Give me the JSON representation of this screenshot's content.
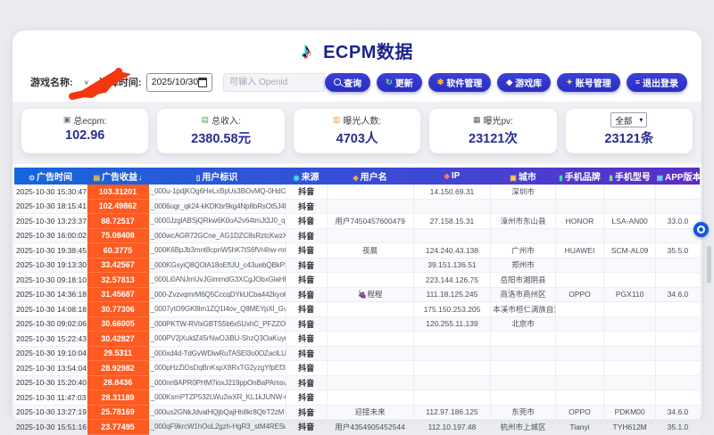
{
  "title": {
    "text": "ECPM数据"
  },
  "glyphs": {
    "note": "♪",
    "chevron_down": "∨",
    "select_arrow": "▾"
  },
  "colors": {
    "header_gradient_left": "#1766dc",
    "header_gradient_right": "#5d2cc8",
    "revenue_cell_bg": "#fd5b21",
    "accent_navy": "#272e8f",
    "button_indigo": "#3a41d8",
    "scribble_red": "#f5360f",
    "tiktok_cyan": "#25f4ee",
    "tiktok_red": "#fe2c55"
  },
  "filters": {
    "game_label": "游戏名称:",
    "time_label": "选择时间:",
    "date_value": "2025/10/30",
    "openid_placeholder": "可输入 Openid"
  },
  "toolbar": {
    "buttons": [
      {
        "id": "search",
        "label": "查询",
        "glyph": "",
        "glyph_color": "#ffffff"
      },
      {
        "id": "refresh",
        "label": "更新",
        "glyph": "↻",
        "glyph_color": "#7fe07f"
      },
      {
        "id": "software",
        "label": "软件管理",
        "glyph": "✱",
        "glyph_color": "#ffb03a"
      },
      {
        "id": "games",
        "label": "游戏库",
        "glyph": "◆",
        "glyph_color": "#ffffff"
      },
      {
        "id": "account",
        "label": "账号管理",
        "glyph": "✦",
        "glyph_color": "#ffd75e"
      },
      {
        "id": "logout",
        "label": "退出登录",
        "glyph": "≡",
        "glyph_color": "#ffffff"
      }
    ]
  },
  "stats": [
    {
      "id": "total-ecpm",
      "icon": "▣",
      "icon_color": "#6a7080",
      "label": "总ecpm:",
      "value": "102.96"
    },
    {
      "id": "total-revenue",
      "icon": "▤",
      "icon_color": "#3fae5a",
      "label": "总收入:",
      "value": "2380.58元"
    },
    {
      "id": "exposure-users",
      "icon": "▥",
      "icon_color": "#f2a33c",
      "label": "曝光人数:",
      "value": "4703人"
    },
    {
      "id": "exposure-pv",
      "icon": "▦",
      "icon_color": "#5a6070",
      "label": "曝光pv:",
      "value": "23121次"
    },
    {
      "id": "record-count",
      "select_value": "全部",
      "value": "23121条"
    }
  ],
  "table": {
    "columns": [
      {
        "key": "ad-time",
        "label": "广告时间",
        "icon": "⊙",
        "icon_color": "#ffffff",
        "sort": "",
        "width_pct": 10.7
      },
      {
        "key": "ad-revenue",
        "label": "广告收益",
        "icon": "▤",
        "icon_color": "#ffc53d",
        "sort": "↓",
        "width_pct": 8.9
      },
      {
        "key": "user-id",
        "label": "用户标识",
        "icon": "▯",
        "icon_color": "#ffffff",
        "sort": "",
        "width_pct": 20.0
      },
      {
        "key": "source",
        "label": "来源",
        "icon": "◉",
        "icon_color": "#45d6f0",
        "sort": "",
        "width_pct": 6.0
      },
      {
        "key": "username",
        "label": "用户名",
        "icon": "◈",
        "icon_color": "#ffb03a",
        "sort": "",
        "width_pct": 12.6
      },
      {
        "key": "ip",
        "label": "IP",
        "icon": "◆",
        "icon_color": "#ff7a6b",
        "sort": "",
        "width_pct": 11.3
      },
      {
        "key": "city",
        "label": "城市",
        "icon": "▣",
        "icon_color": "#ffd24a",
        "sort": "",
        "width_pct": 9.4
      },
      {
        "key": "phone-brand",
        "label": "手机品牌",
        "icon": "▮",
        "icon_color": "#3fd9a4",
        "sort": "",
        "width_pct": 7.1
      },
      {
        "key": "phone-model",
        "label": "手机型号",
        "icon": "▮",
        "icon_color": "#7ee07e",
        "sort": "",
        "width_pct": 7.5
      },
      {
        "key": "app-version",
        "label": "APP版本",
        "icon": "▣",
        "icon_color": "#6fd3ff",
        "sort": "",
        "width_pct": 6.5
      }
    ],
    "rows": [
      [
        "2025-10-30 15:30:47",
        "103.31201",
        "_000u-1pdjKOg6HeLxBpUs3BOvMQ-0HdCqsF",
        "抖音",
        "",
        "14.150.69.31",
        "深圳市",
        "",
        "",
        ""
      ],
      [
        "2025-10-30 18:15:41",
        "102.49862",
        "_0006ugr_qk24-kKDKbr9kg4Np8bRsOt5J4F",
        "抖音",
        "",
        "",
        "",
        "",
        "",
        ""
      ],
      [
        "2025-10-30 13:23:37",
        "88.72517",
        "_0000JzglABSjQRkw6K0oA2v64tmJt3J0_q",
        "抖音",
        "用户7450457600479",
        "27.158.15.31",
        "漳州市东山县",
        "HONOR",
        "LSA-AN00",
        "33.0.0"
      ],
      [
        "2025-10-30 16:00:02",
        "75.08408",
        "_000wcAGR72GCne_AG1DZC8sRztcKwzXu0ul",
        "抖音",
        "",
        "",
        "",
        "",
        "",
        ""
      ],
      [
        "2025-10-30 19:38:45",
        "60.3775",
        "_000K6BpJb3mnt8cpnW5hK7tS6fVr4hw-mQ",
        "抖音",
        "夜晨",
        "124.240.43.138",
        "广州市",
        "HUAWEI",
        "SCM-AL09",
        "35.5.0"
      ],
      [
        "2025-10-30 19:13:30",
        "33.42567",
        "_000KGxyiQ8QOlA18oEfUU_c43uebQBkPSC",
        "抖音",
        "",
        "39.151.136.51",
        "郑州市",
        "",
        "",
        ""
      ],
      [
        "2025-10-30 09:18:10",
        "32.57813",
        "_000Li0ANJmUvJGimmdG3XCgJObxGlaHfUgM",
        "抖音",
        "",
        "223.144.126.75",
        "岳阳市湘阴县",
        "",
        "",
        ""
      ],
      [
        "2025-10-30 14:36:18",
        "31.45687",
        "_000-ZvzvqmrM6Q5CccqDYkUCba442kyoKg",
        "抖音",
        "🍇程程",
        "111.18.125.245",
        "商洛市商州区",
        "OPPO",
        "PGX110",
        "34.6.0"
      ],
      [
        "2025-10-30 14:08:18",
        "30.77306",
        "_0007ytO9GK8lm1ZQ1l4ov_Q8MEYpXl_GvGE",
        "抖音",
        "",
        "175.150.253.205",
        "本溪市桓仁满族自治县",
        "",
        "",
        ""
      ],
      [
        "2025-10-30 09:02:06",
        "30.66005",
        "_000PKTW-RVlxGBTS5b6x5UxhC_PFZZOcX25",
        "抖音",
        "",
        "120.255.11.139",
        "北京市",
        "",
        "",
        ""
      ],
      [
        "2025-10-30 15:22:43",
        "30.42827",
        "_000PV2jXuldZ45rNwOJiBU-ShzQ3OaKuyn1",
        "抖音",
        "",
        "",
        "",
        "",
        "",
        ""
      ],
      [
        "2025-10-30 19:10:04",
        "29.5311",
        "_000xd4d-TdGvWDiwRuTASEl3o0OZaclLU5",
        "抖音",
        "",
        "",
        "",
        "",
        "",
        ""
      ],
      [
        "2025-10-30 13:54:04",
        "28.92982",
        "_000pHzZiOsDqBnKspX8RxTG2yzgYfpEf3J5",
        "抖音",
        "",
        "",
        "",
        "",
        "",
        ""
      ],
      [
        "2025-10-30 15:20:40",
        "28.8436",
        "_000nn9APR0PHM7ioxJ219ppOnBaPAmsv77D",
        "抖音",
        "",
        "",
        "",
        "",
        "",
        ""
      ],
      [
        "2025-10-30 11:47:03",
        "28.31189",
        "_000KsmPTZP532LWu2wXR_KL1kJUNW-OjsC6",
        "抖音",
        "",
        "",
        "",
        "",
        "",
        ""
      ],
      [
        "2025-10-30 13:27:19",
        "25.78169",
        "_000us2GNkJdvalHQjbQajHh8kr8QtrT2zM",
        "抖音",
        "迎接未来",
        "112.97.186.125",
        "东莞市",
        "OPPO",
        "PDKM00",
        "34.6.0"
      ],
      [
        "2025-10-30 15:51:16",
        "23.77495",
        "_000qF9krcW1hOoL2gzh-HgR3_stM4RESw42",
        "抖音",
        "用户4354905452544",
        "112.10.197.48",
        "杭州市上城区",
        "Tianyi",
        "TYH612M",
        "35.1.0"
      ]
    ]
  }
}
